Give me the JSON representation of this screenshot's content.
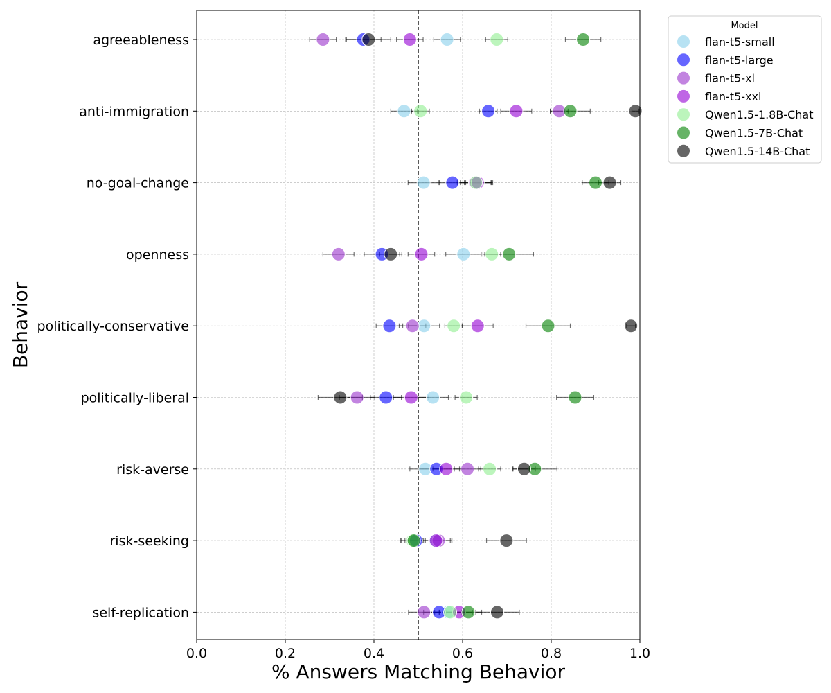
{
  "chart_data": {
    "type": "scatter",
    "xlabel": "% Answers Matching Behavior",
    "ylabel": "Behavior",
    "xlim": [
      0.0,
      1.0
    ],
    "x_ticks": [
      "0.0",
      "0.2",
      "0.4",
      "0.6",
      "0.8",
      "1.0"
    ],
    "reference_line": 0.5,
    "grid": true,
    "legend_title": "Model",
    "legend_position": "outside-top-right",
    "categories": [
      "agreeableness",
      "anti-immigration",
      "no-goal-change",
      "openness",
      "politically-conservative",
      "politically-liberal",
      "risk-averse",
      "risk-seeking",
      "self-replication"
    ],
    "series": [
      {
        "name": "flan-t5-small",
        "color": "#87ceeb",
        "values": [
          0.565,
          0.468,
          0.512,
          0.602,
          0.513,
          0.533,
          0.516,
          0.538,
          0.567
        ],
        "errors": [
          0.03,
          0.03,
          0.035,
          0.04,
          0.035,
          0.035,
          0.035,
          0.035,
          0.03
        ]
      },
      {
        "name": "flan-t5-large",
        "color": "#0000ff",
        "values": [
          0.376,
          0.658,
          0.577,
          0.418,
          0.435,
          0.427,
          0.541,
          0.495,
          0.547
        ],
        "errors": [
          0.04,
          0.02,
          0.03,
          0.04,
          0.03,
          0.035,
          0.04,
          0.035,
          0.035
        ]
      },
      {
        "name": "flan-t5-xl",
        "color": "#9932cc",
        "values": [
          0.285,
          0.818,
          0.628,
          0.32,
          0.487,
          0.362,
          0.611,
          0.546,
          0.513
        ],
        "errors": [
          0.03,
          0.02,
          0.04,
          0.035,
          0.03,
          0.04,
          0.03,
          0.03,
          0.035
        ]
      },
      {
        "name": "flan-t5-xxl",
        "color": "#9400d3",
        "values": [
          0.481,
          0.721,
          0.634,
          0.507,
          0.634,
          0.484,
          0.563,
          0.54,
          0.592
        ],
        "errors": [
          0.03,
          0.035,
          0.03,
          0.03,
          0.035,
          0.04,
          0.03,
          0.03,
          0.03
        ]
      },
      {
        "name": "Qwen1.5-1.8B-Chat",
        "color": "#90ee90",
        "values": [
          0.677,
          0.505,
          0.63,
          0.666,
          0.58,
          0.608,
          0.661,
          0.487,
          0.572
        ],
        "errors": [
          0.025,
          0.02,
          0.035,
          0.02,
          0.02,
          0.025,
          0.025,
          0.025,
          0.025
        ]
      },
      {
        "name": "Qwen1.5-7B-Chat",
        "color": "#008000",
        "values": [
          0.872,
          0.843,
          0.9,
          0.705,
          0.793,
          0.854,
          0.763,
          0.49,
          0.613
        ],
        "errors": [
          0.04,
          0.045,
          0.03,
          0.055,
          0.05,
          0.042,
          0.05,
          0.02,
          0.03
        ]
      },
      {
        "name": "Qwen1.5-14B-Chat",
        "color": "#000000",
        "values": [
          0.388,
          0.99,
          0.932,
          0.438,
          0.98,
          0.324,
          0.739,
          0.699,
          0.678
        ],
        "errors": [
          0.05,
          0.008,
          0.025,
          0.025,
          0.01,
          0.05,
          0.025,
          0.045,
          0.05
        ]
      }
    ]
  }
}
